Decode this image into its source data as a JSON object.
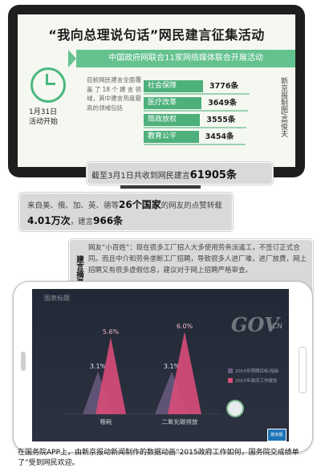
{
  "header": {
    "title": "“我向总理说句话”网民建言征集活动",
    "subtitle": "中国政府网联合11家网络媒体联合开展活动"
  },
  "event": {
    "date_line1": "1月31日",
    "date_line2": "活动开始",
    "intro": "目前网民建言全面覆盖了18个建言领域，其中建言热度最高的领域包括"
  },
  "stats": [
    {
      "label": "社会保障",
      "value": "3776条",
      "fraction": 1.0
    },
    {
      "label": "医疗改革",
      "value": "3649条",
      "fraction": 0.97
    },
    {
      "label": "简政放权",
      "value": "3555条",
      "fraction": 0.94
    },
    {
      "label": "教育公平",
      "value": "3454条",
      "fraction": 0.91
    }
  ],
  "credit": "新京报制图/高俊夫",
  "bubble1": {
    "prefix": "截至3月1日共收到网民建言",
    "number": "61905条"
  },
  "bubble2": {
    "part1": "来自美、俄、加、英、德等",
    "countries": "26个国家",
    "part2": "的网友的点赞转载",
    "views": "4.01万次",
    "part3": "，建言",
    "count": "966条"
  },
  "bubble3": {
    "tag": "建言摘录",
    "text": "网友“小百姓”：现在很多工厂招人大多使用劳务派遣工，不签订正式合同。而且中介和劳务垄断工厂招聘，导致很多人进厂难，进厂放费，网上招聘又有很多虚假信息，建议对于网上招聘严格审查。"
  },
  "phone": {
    "chart_title": "图表标题",
    "watermark": "GOV",
    "watermark_suffix": ".CN",
    "app_logo": "新京报"
  },
  "chart_data": {
    "type": "area",
    "categories": [
      "粮耗",
      "二氧化碳排放"
    ],
    "series": [
      {
        "name": "2015年预期目标/指标",
        "values": [
          3.1,
          3.1
        ],
        "color": "#6a5a80"
      },
      {
        "name": "2015年政府工作报告",
        "values": [
          5.6,
          6.0
        ],
        "color": "#d94c7a"
      }
    ],
    "data_labels": [
      "3.1%",
      "5.6%",
      "3.1%",
      "6.0%"
    ],
    "ylim": [
      0,
      7
    ]
  },
  "caption": "在国务院APP上，由新京报动新闻制作的数据动画“2015政府工作如何，国务院交成绩单了”受到网民欢迎。"
}
